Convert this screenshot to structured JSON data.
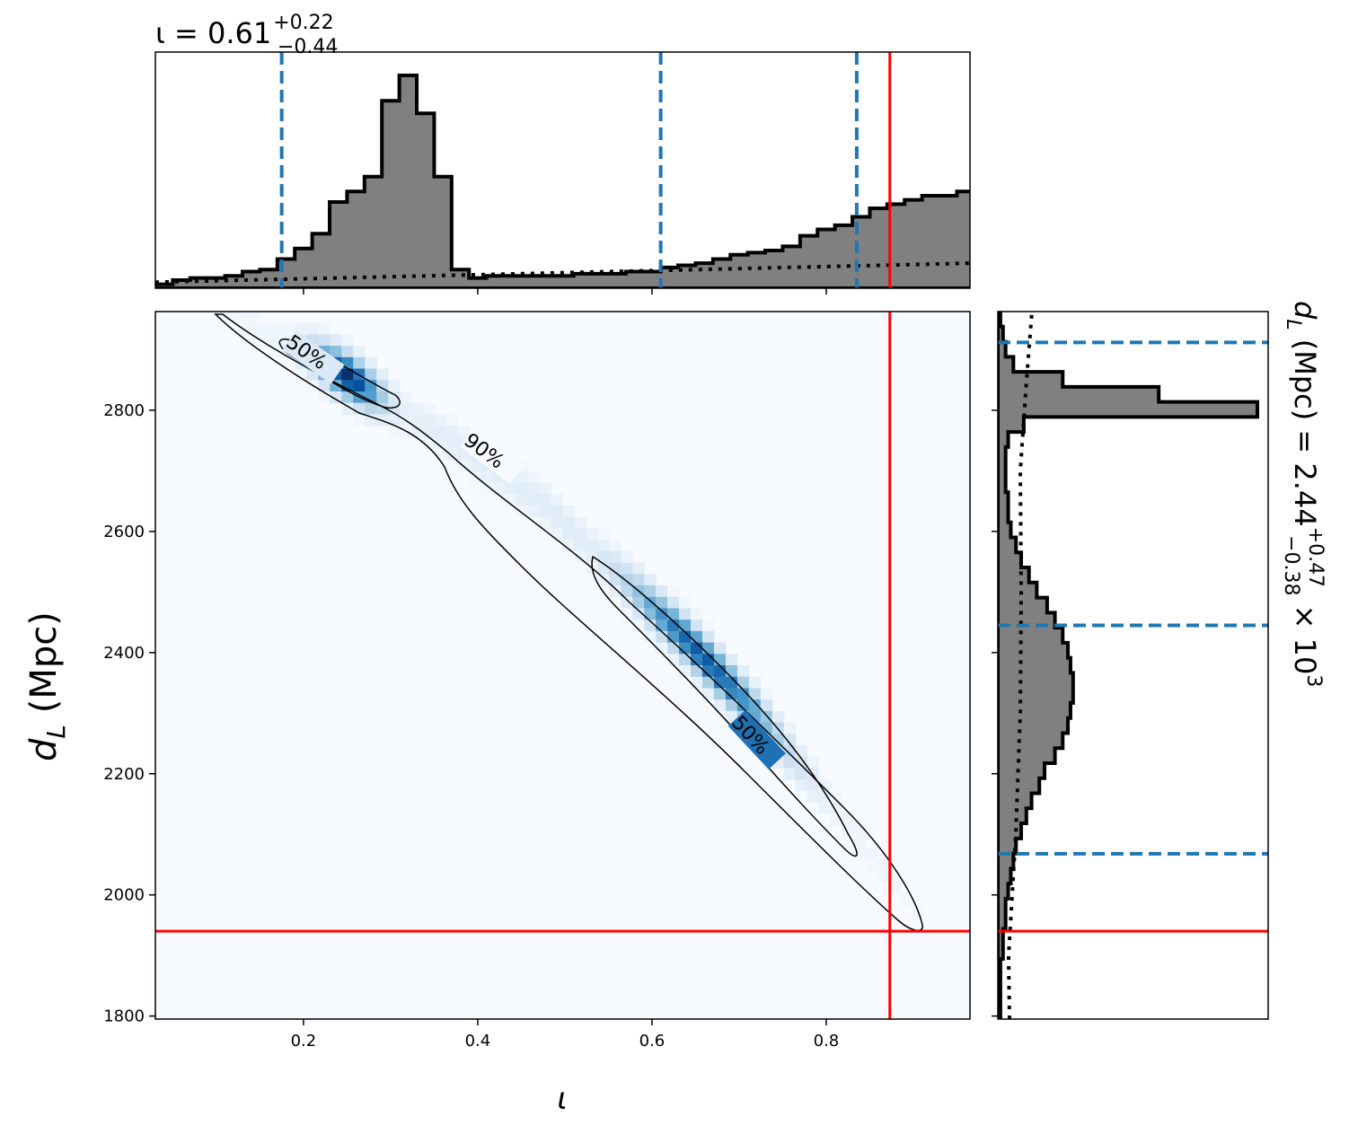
{
  "chart_data": [
    {
      "panel": "top-marginal",
      "type": "histogram",
      "title_main": "ι = 0.61",
      "title_sup": "+0.22",
      "title_sub": "−0.44",
      "xlim": [
        0.03,
        0.965
      ],
      "bin_edges_start": 0.03,
      "bin_width": 0.02,
      "density": [
        1,
        3,
        4,
        4,
        5,
        7,
        8,
        13,
        18,
        25,
        40,
        45,
        52,
        88,
        100,
        82,
        52,
        8,
        4,
        5,
        5,
        5,
        5,
        5,
        6,
        6,
        6,
        7,
        7,
        9,
        10,
        11,
        13,
        15,
        16,
        17,
        19,
        24,
        27,
        29,
        33,
        37,
        39,
        41,
        43,
        43,
        45,
        45,
        45,
        41,
        37,
        33,
        30,
        17,
        13,
        7,
        4,
        3,
        2,
        1
      ],
      "prior_start": 2,
      "prior_end": 11,
      "quantiles": [
        0.175,
        0.61,
        0.835
      ],
      "injection": 0.873,
      "yaxis_visible": false
    },
    {
      "panel": "joint",
      "type": "heatmap",
      "xlabel": "ι",
      "ylabel_main": "d",
      "ylabel_sub": "L",
      "ylabel_rest": " (Mpc)",
      "xlim": [
        0.03,
        0.965
      ],
      "ylim": [
        1795,
        2963
      ],
      "xticks": [
        0.2,
        0.4,
        0.6,
        0.8
      ],
      "xtick_labels": [
        "0.2",
        "0.4",
        "0.6",
        "0.8"
      ],
      "yticks": [
        1800,
        2000,
        2200,
        2400,
        2600,
        2800
      ],
      "ytick_labels": [
        "1800",
        "2000",
        "2200",
        "2400",
        "2600",
        "2800"
      ],
      "contour_labels": [
        "50%",
        "90%",
        "50%"
      ],
      "injection": {
        "x": 0.873,
        "y": 1940
      },
      "colormap": "Blues",
      "colors": {
        "injection": "#ff0000",
        "quantile": "#1f77b4",
        "hist_fill": "#808080"
      }
    },
    {
      "panel": "right-marginal",
      "type": "histogram",
      "orientation": "horizontal",
      "ylim": [
        1795,
        2963
      ],
      "density": [
        1,
        1,
        1,
        1,
        2,
        2,
        3,
        3,
        4,
        5,
        6,
        7,
        9,
        11,
        13,
        16,
        18,
        22,
        25,
        27,
        28,
        29,
        29,
        28,
        27,
        25,
        22,
        19,
        15,
        12,
        9,
        7,
        5,
        4,
        4,
        3,
        3,
        3,
        4,
        10,
        100,
        62,
        25,
        6,
        3,
        2,
        1
      ],
      "bin_edges_start": 1795,
      "bin_width": 24.85,
      "quantiles": [
        2068,
        2445,
        2912
      ],
      "injection": 1940,
      "label_main": "d",
      "label_sub": "L",
      "label_rest": " (Mpc) = 2.44",
      "label_sup": "+0.47",
      "label_subq": "−0.38",
      "label_tail": " × 10",
      "label_exp": "3",
      "xaxis_visible": false
    }
  ]
}
